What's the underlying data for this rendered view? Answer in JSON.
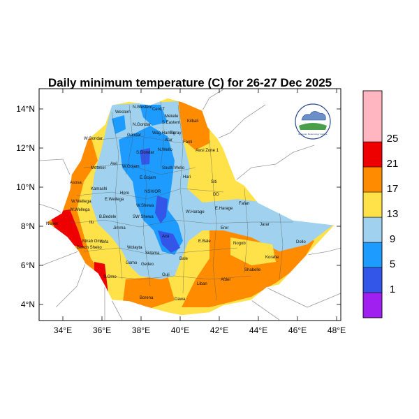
{
  "title": "Daily minimum temperature (C) for 26-27 Dec 2025",
  "map": {
    "x_ticks": [
      "34°E",
      "36°E",
      "38°E",
      "40°E",
      "42°E",
      "44°E",
      "46°E",
      "48°E"
    ],
    "y_ticks": [
      "14°N",
      "12°N",
      "10°N",
      "8°N",
      "6°N",
      "4°N"
    ],
    "regions": [
      "Western",
      "N.Western",
      "Cent.T",
      "Mekele",
      "S.Eastern",
      "N.Gondar",
      "Kilbali",
      "Wag Hamra",
      "Tigray",
      "W.Gondar",
      "Gondar",
      "Afar",
      "Fanti",
      "S.Gondar",
      "N.Wello",
      "Awsi Zone 1",
      "Metekel",
      "Awi",
      "W.Gojam",
      "South Wello",
      "E.Gojam",
      "Asosa",
      "Kamashi",
      "Horo",
      "NSH/OR",
      "Siti",
      "W.Wellega",
      "E.Wellega",
      "W.Shewa",
      "Hari",
      "DD",
      "Nuwer",
      "W.Wellega",
      "Ilu",
      "B.Bedele",
      "Jimma",
      "SW Shewa",
      "E.Harage",
      "W.Harage",
      "Fafan",
      "Jarar",
      "Erer",
      "Arsi",
      "E.Bale",
      "Nogob",
      "Dollo",
      "Korahe",
      "Shabelle",
      "Bench Sheko",
      "Kefa",
      "Wolayta",
      "Sidama",
      "Bale",
      "Gamo",
      "Gedeo",
      "Guji",
      "Liban",
      "Afder",
      "Borena",
      "Dawa",
      "S.Omo",
      "Mirab Omo"
    ],
    "logo_text": "Ethiopian Meteorology Institute"
  },
  "colorbar": {
    "levels": [
      "1",
      "5",
      "9",
      "13",
      "17",
      "21",
      "25"
    ],
    "colors": [
      "#a020f0",
      "#3355e8",
      "#1e9bff",
      "#a0d2ef",
      "#ffe24a",
      "#ff8c00",
      "#ee0000",
      "#ffb6c1"
    ]
  }
}
